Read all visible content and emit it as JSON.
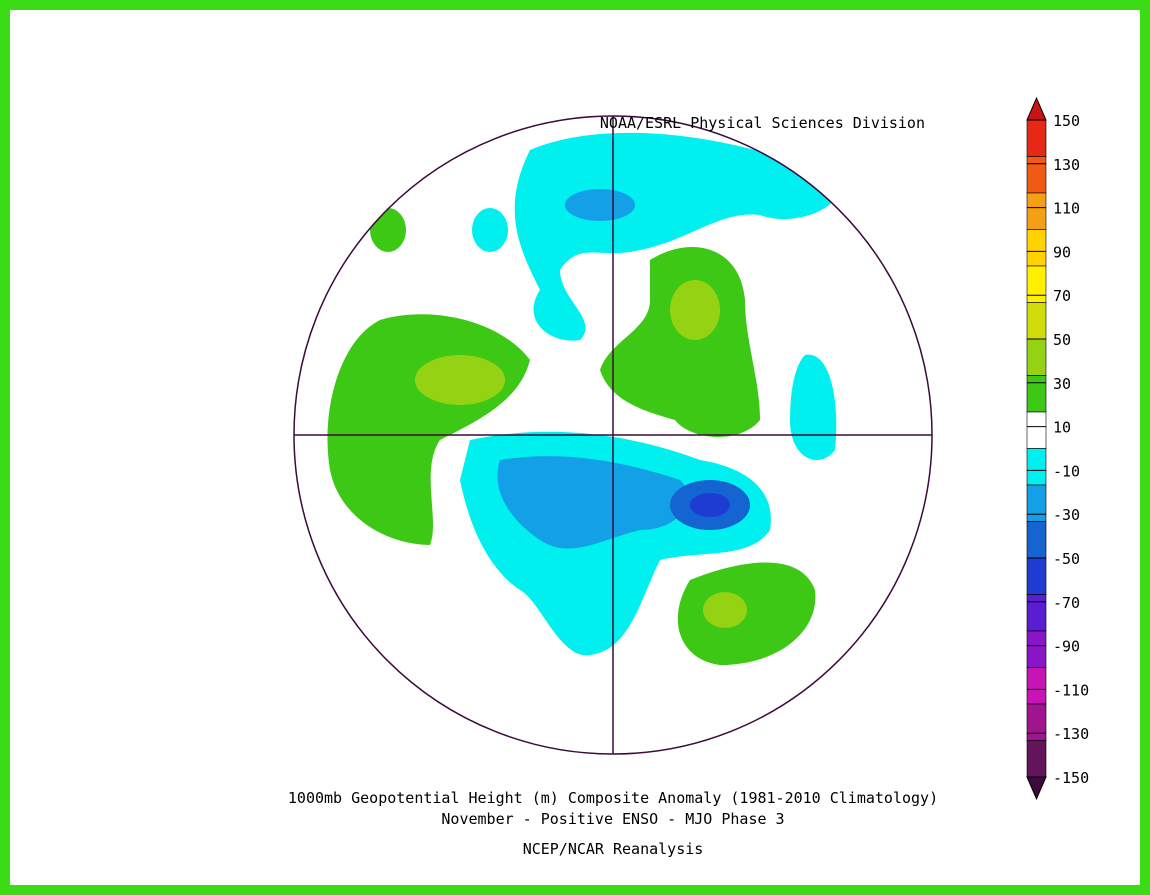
{
  "credit": "NOAA/ESRL Physical Sciences Division",
  "title": "1000mb Geopotential Height (m) Composite Anomaly (1981-2010 Climatology)",
  "subtitle": "November - Positive ENSO - MJO Phase 3",
  "source": "NCEP/NCAR Reanalysis",
  "colorbar": {
    "ticks": [
      150,
      130,
      110,
      90,
      70,
      50,
      30,
      10,
      -10,
      -30,
      -50,
      -70,
      -90,
      -110,
      -130,
      -150
    ],
    "colors": [
      "#c81414",
      "#e62814",
      "#f05a14",
      "#f5a014",
      "#ffd200",
      "#fff000",
      "#d2dc0a",
      "#96d214",
      "#3cc814",
      "#ffffff",
      "#00f0f0",
      "#14a0e6",
      "#1464d2",
      "#1e3cd2",
      "#5a1ed2",
      "#8c14c8",
      "#c814b4",
      "#a01490",
      "#64145a",
      "#3c0a3c"
    ]
  }
}
